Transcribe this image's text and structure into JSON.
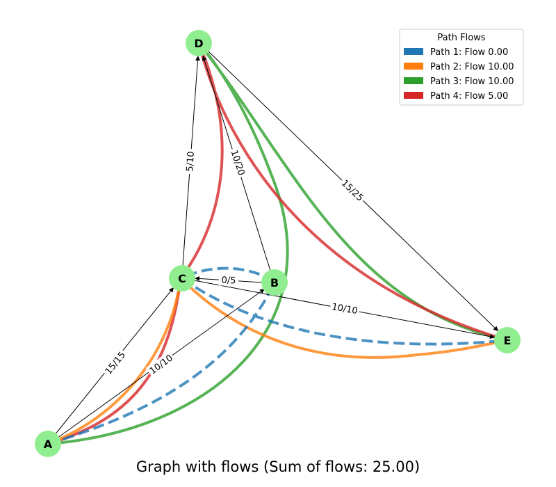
{
  "title": "Graph with flows (Sum of flows: 25.00)",
  "colors": {
    "node": "#90ee90",
    "edge": "#000000",
    "path1": "#1f77b4",
    "path2": "#ff7f0e",
    "path3": "#2ca02c",
    "path4": "#d62728"
  },
  "nodes": [
    {
      "id": "A",
      "label": "A"
    },
    {
      "id": "B",
      "label": "B"
    },
    {
      "id": "C",
      "label": "C"
    },
    {
      "id": "D",
      "label": "D"
    },
    {
      "id": "E",
      "label": "E"
    }
  ],
  "edges": [
    {
      "from": "A",
      "to": "C",
      "label": "15/15"
    },
    {
      "from": "A",
      "to": "B",
      "label": "10/10"
    },
    {
      "from": "C",
      "to": "D",
      "label": "5/10"
    },
    {
      "from": "B",
      "to": "C",
      "label": "0/5"
    },
    {
      "from": "B",
      "to": "D",
      "label": "10/20"
    },
    {
      "from": "C",
      "to": "E",
      "label": "10/10"
    },
    {
      "from": "D",
      "to": "E",
      "label": "15/25"
    }
  ],
  "legend": {
    "title": "Path Flows",
    "items": [
      {
        "label": "Path 1: Flow 0.00",
        "color": "#1f77b4"
      },
      {
        "label": "Path 2: Flow 10.00",
        "color": "#ff7f0e"
      },
      {
        "label": "Path 3: Flow 10.00",
        "color": "#2ca02c"
      },
      {
        "label": "Path 4: Flow 5.00",
        "color": "#d62728"
      }
    ]
  },
  "paths": [
    {
      "name": "Path 1: Flow 0.00",
      "nodes": [
        "A",
        "B",
        "C",
        "E"
      ],
      "flow": 0.0,
      "style": "dashed"
    },
    {
      "name": "Path 2: Flow 10.00",
      "nodes": [
        "A",
        "C",
        "E"
      ],
      "flow": 10.0,
      "style": "solid"
    },
    {
      "name": "Path 3: Flow 10.00",
      "nodes": [
        "A",
        "B",
        "D",
        "E"
      ],
      "flow": 10.0,
      "style": "solid"
    },
    {
      "name": "Path 4: Flow 5.00",
      "nodes": [
        "A",
        "C",
        "D",
        "E"
      ],
      "flow": 5.0,
      "style": "solid"
    }
  ]
}
